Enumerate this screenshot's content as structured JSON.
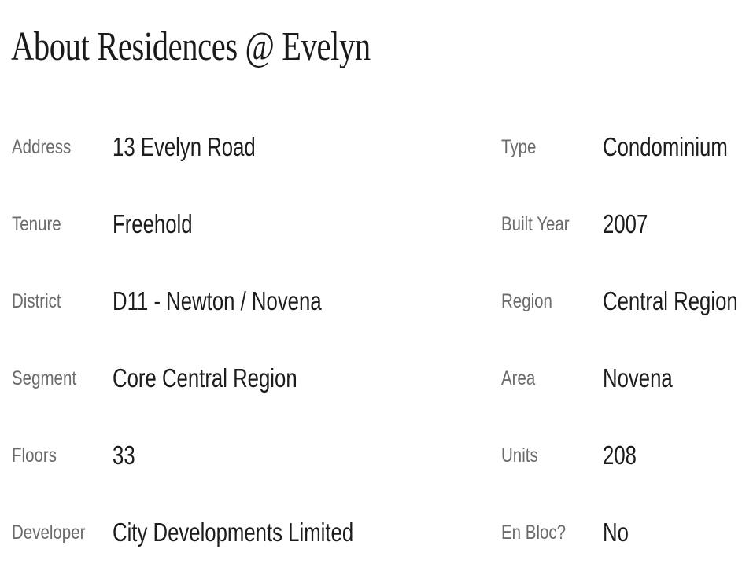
{
  "title": "About Residences @ Evelyn",
  "left": [
    {
      "label": "Address",
      "value": "13 Evelyn Road"
    },
    {
      "label": "Tenure",
      "value": "Freehold"
    },
    {
      "label": "District",
      "value": "D11 - Newton / Novena"
    },
    {
      "label": "Segment",
      "value": "Core Central Region"
    },
    {
      "label": "Floors",
      "value": "33"
    },
    {
      "label": "Developer",
      "value": "City Developments Limited"
    }
  ],
  "right": [
    {
      "label": "Type",
      "value": "Condominium"
    },
    {
      "label": "Built Year",
      "value": "2007"
    },
    {
      "label": "Region",
      "value": "Central Region"
    },
    {
      "label": "Area",
      "value": "Novena"
    },
    {
      "label": "Units",
      "value": "208"
    },
    {
      "label": "En Bloc?",
      "value": "No"
    }
  ]
}
